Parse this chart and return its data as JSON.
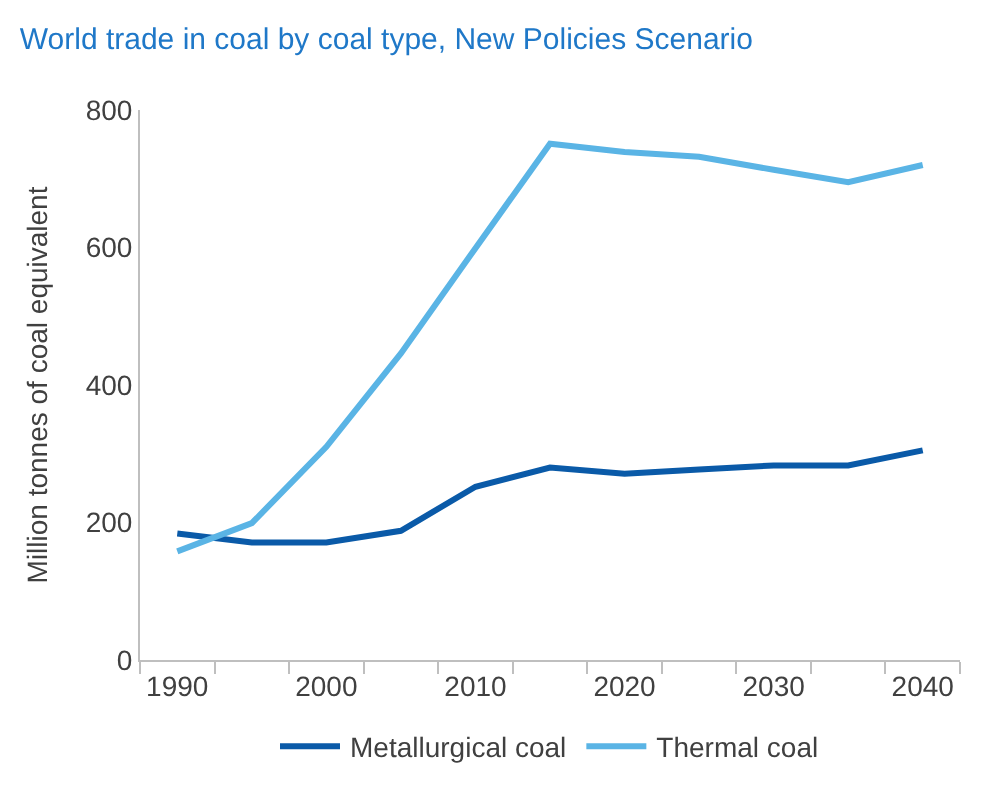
{
  "chart_data": {
    "type": "line",
    "title": "World trade in coal by coal type, New Policies Scenario",
    "ylabel": "Million tonnes of coal equivalent",
    "categories": [
      "1990",
      null,
      "2000",
      null,
      "2010",
      null,
      "2020",
      null,
      "2030",
      null,
      "2040"
    ],
    "series": [
      {
        "name": "Metallurgical coal",
        "color": "#0a5aa8",
        "values": [
          184,
          171,
          171,
          188,
          252,
          280,
          271,
          277,
          283,
          283,
          305
        ]
      },
      {
        "name": "Thermal coal",
        "color": "#5ab4e5",
        "values": [
          158,
          199,
          310,
          446,
          599,
          751,
          739,
          732,
          713,
          695,
          720
        ]
      }
    ],
    "ylim": [
      0,
      800
    ],
    "yticks": [
      0,
      200,
      400,
      600,
      800
    ],
    "grid": false,
    "legend": "bottom",
    "marker": "none",
    "line_style": "solid"
  }
}
